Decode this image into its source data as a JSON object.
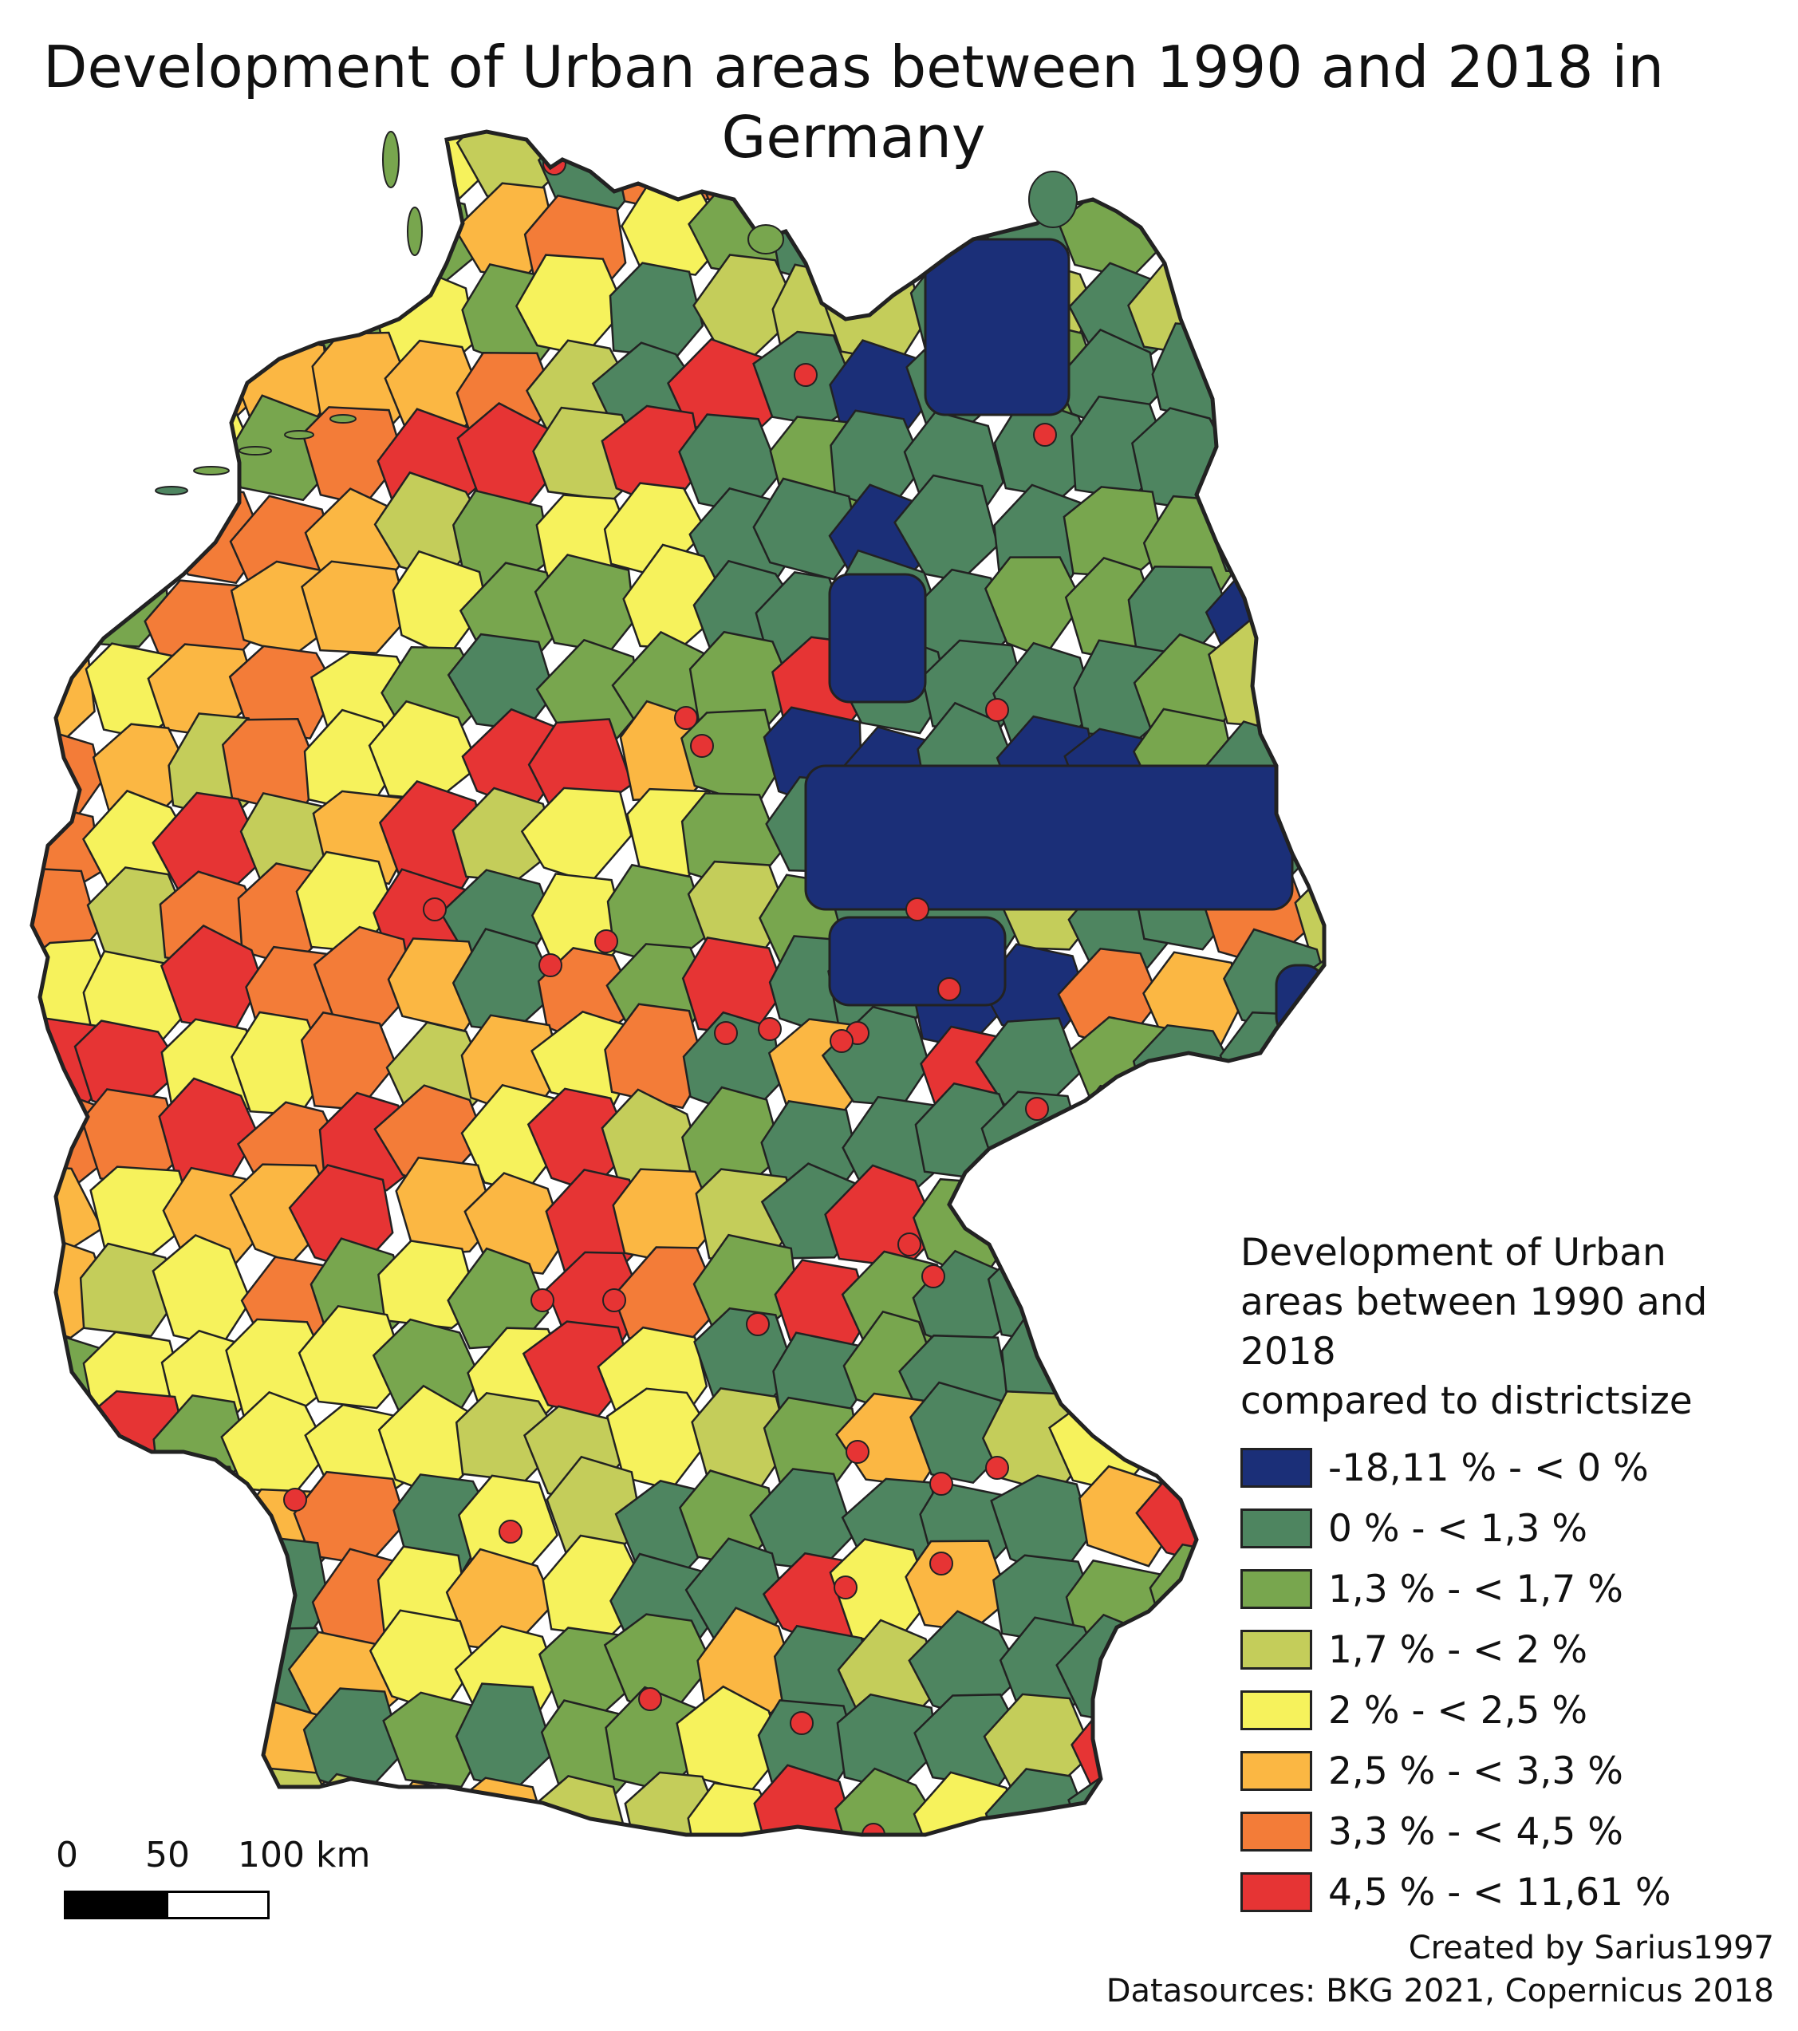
{
  "title": {
    "line1": "Development of Urban areas between 1990 and 2018 in",
    "line2": "Germany"
  },
  "legend": {
    "title_line1": "Development of Urban",
    "title_line2": "areas between 1990 and 2018",
    "title_line3": "compared to districtsize",
    "classes": [
      {
        "label": "-18,11 % - < 0 %",
        "color": "#1b2f78"
      },
      {
        "label": "0 % - < 1,3 %",
        "color": "#4e8560"
      },
      {
        "label": "1,3 % - < 1,7 %",
        "color": "#78a64e"
      },
      {
        "label": "1,7 % - < 2 %",
        "color": "#c4cd5a"
      },
      {
        "label": "2 % - < 2,5 %",
        "color": "#f6f25c"
      },
      {
        "label": "2,5 % - < 3,3 %",
        "color": "#fbb743"
      },
      {
        "label": "3,3 % - < 4,5 %",
        "color": "#f37c38"
      },
      {
        "label": "4,5 % - < 11,61 %",
        "color": "#e63434"
      }
    ]
  },
  "scale": {
    "label_0": "0",
    "label_50": "50",
    "label_100": "100 km"
  },
  "credits": {
    "line1": "Created by Sarius1997",
    "line2": "Datasources: BKG 2021, Copernicus 2018"
  },
  "colors": {
    "border": "#222222",
    "background": "#ffffff"
  }
}
